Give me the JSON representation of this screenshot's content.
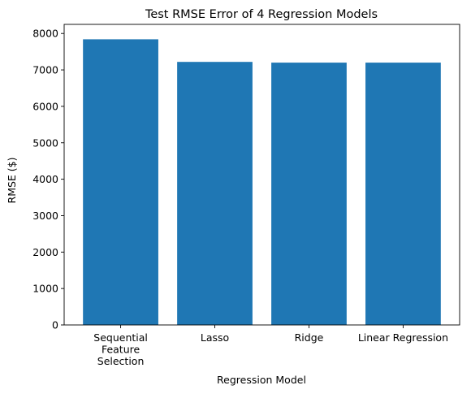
{
  "chart_data": {
    "type": "bar",
    "title": "Test RMSE Error of 4 Regression Models",
    "xlabel": "Regression Model",
    "ylabel": "RMSE ($)",
    "categories": [
      [
        "Sequential",
        "Feature",
        "Selection"
      ],
      [
        "Lasso"
      ],
      [
        "Ridge"
      ],
      [
        "Linear Regression"
      ]
    ],
    "values": [
      7840,
      7220,
      7200,
      7200
    ],
    "ylim": [
      0,
      8250
    ],
    "yticks": [
      0,
      1000,
      2000,
      3000,
      4000,
      5000,
      6000,
      7000,
      8000
    ],
    "bar_color": "#1f77b4",
    "grid": false,
    "legend": "none"
  }
}
